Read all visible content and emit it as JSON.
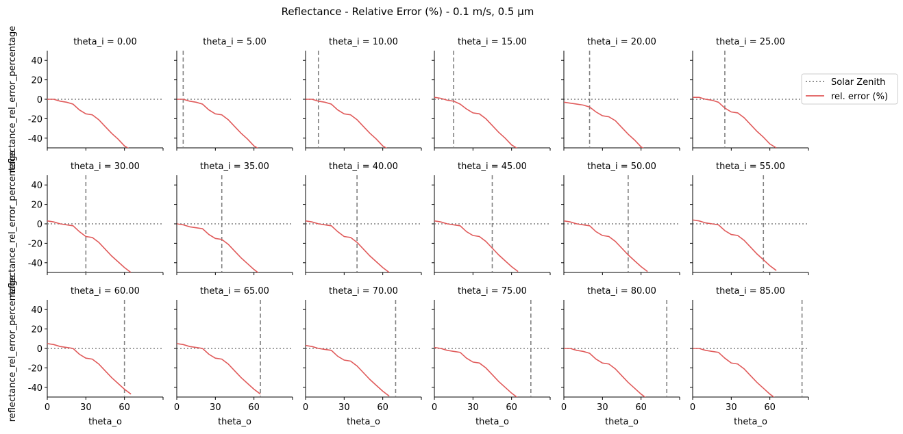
{
  "figure": {
    "title": "Reflectance - Relative Error (%) - 0.1 m/s, 0.5 µm"
  },
  "legend": {
    "placement": "right",
    "entries": [
      {
        "label": "Solar Zenith",
        "style": "dotted",
        "color": "#808080"
      },
      {
        "label": "rel. error (%)",
        "style": "solid",
        "color": "#e05a5a"
      }
    ]
  },
  "colors": {
    "error_line": "#e05a5a",
    "reference": "#808080",
    "axis": "#000000"
  },
  "chart_data": {
    "type": "line",
    "layout": "facet-grid 3x6",
    "xlabel": "theta_o",
    "ylabel": "reflectance_rel_error_percentage",
    "xlim": [
      0,
      90
    ],
    "ylim": [
      -50,
      50
    ],
    "xticks": [
      0,
      30,
      60
    ],
    "yticks": [
      -40,
      -20,
      0,
      20,
      40
    ],
    "hline_y": 0,
    "x": [
      0,
      5,
      10,
      15,
      20,
      25,
      30,
      35,
      40,
      45,
      50,
      55,
      60,
      65
    ],
    "panels": [
      {
        "title": "theta_i = 0.00",
        "theta_i": 0,
        "values": [
          0,
          0,
          -2,
          -3,
          -5,
          -11,
          -15,
          -16,
          -21,
          -28,
          -35,
          -41,
          -48,
          -52
        ]
      },
      {
        "title": "theta_i = 5.00",
        "theta_i": 5,
        "values": [
          0,
          0,
          -2,
          -3,
          -5,
          -11,
          -15,
          -16,
          -21,
          -28,
          -35,
          -41,
          -48,
          -52
        ]
      },
      {
        "title": "theta_i = 10.00",
        "theta_i": 10,
        "values": [
          0,
          0,
          -2,
          -3,
          -5,
          -11,
          -15,
          -16,
          -21,
          -28,
          -35,
          -41,
          -48,
          -52
        ]
      },
      {
        "title": "theta_i = 15.00",
        "theta_i": 15,
        "values": [
          2,
          1,
          -1,
          -2,
          -5,
          -10,
          -14,
          -15,
          -20,
          -27,
          -34,
          -40,
          -47,
          -51
        ]
      },
      {
        "title": "theta_i = 20.00",
        "theta_i": 20,
        "values": [
          -3,
          -4,
          -5,
          -6,
          -8,
          -13,
          -17,
          -18,
          -22,
          -29,
          -36,
          -42,
          -49,
          -53
        ]
      },
      {
        "title": "theta_i = 25.00",
        "theta_i": 25,
        "values": [
          2,
          2,
          0,
          -1,
          -3,
          -9,
          -13,
          -14,
          -19,
          -26,
          -33,
          -39,
          -46,
          -50
        ]
      },
      {
        "title": "theta_i = 30.00",
        "theta_i": 30,
        "values": [
          3,
          2,
          0,
          -1,
          -2,
          -8,
          -13,
          -14,
          -19,
          -26,
          -33,
          -39,
          -45,
          -50
        ]
      },
      {
        "title": "theta_i = 35.00",
        "theta_i": 35,
        "values": [
          0,
          -1,
          -3,
          -4,
          -5,
          -11,
          -15,
          -16,
          -21,
          -28,
          -35,
          -41,
          -47,
          -52
        ]
      },
      {
        "title": "theta_i = 40.00",
        "theta_i": 40,
        "values": [
          3,
          2,
          0,
          -1,
          -2,
          -8,
          -13,
          -14,
          -19,
          -26,
          -33,
          -39,
          -45,
          -50
        ]
      },
      {
        "title": "theta_i = 45.00",
        "theta_i": 45,
        "values": [
          3,
          2,
          0,
          -1,
          -2,
          -8,
          -12,
          -13,
          -18,
          -25,
          -32,
          -38,
          -44,
          -49
        ]
      },
      {
        "title": "theta_i = 50.00",
        "theta_i": 50,
        "values": [
          3,
          2,
          0,
          -1,
          -2,
          -8,
          -12,
          -13,
          -18,
          -25,
          -32,
          -38,
          -44,
          -49
        ]
      },
      {
        "title": "theta_i = 55.00",
        "theta_i": 55,
        "values": [
          4,
          3,
          1,
          0,
          -1,
          -7,
          -11,
          -12,
          -17,
          -24,
          -31,
          -37,
          -43,
          -48
        ]
      },
      {
        "title": "theta_i = 60.00",
        "theta_i": 60,
        "values": [
          5,
          4,
          2,
          1,
          0,
          -6,
          -10,
          -11,
          -16,
          -23,
          -30,
          -36,
          -42,
          -47
        ]
      },
      {
        "title": "theta_i = 65.00",
        "theta_i": 65,
        "values": [
          5,
          4,
          2,
          1,
          0,
          -6,
          -10,
          -11,
          -16,
          -23,
          -30,
          -36,
          -42,
          -47
        ]
      },
      {
        "title": "theta_i = 70.00",
        "theta_i": 70,
        "values": [
          3,
          2,
          0,
          -1,
          -2,
          -8,
          -12,
          -13,
          -18,
          -25,
          -32,
          -38,
          -44,
          -49
        ]
      },
      {
        "title": "theta_i = 75.00",
        "theta_i": 75,
        "values": [
          1,
          0,
          -2,
          -3,
          -4,
          -10,
          -14,
          -15,
          -20,
          -27,
          -34,
          -40,
          -46,
          -51
        ]
      },
      {
        "title": "theta_i = 80.00",
        "theta_i": 80,
        "values": [
          0,
          0,
          -2,
          -3,
          -5,
          -11,
          -15,
          -16,
          -21,
          -28,
          -35,
          -41,
          -47,
          -52
        ]
      },
      {
        "title": "theta_i = 85.00",
        "theta_i": 85,
        "values": [
          0,
          0,
          -2,
          -3,
          -4,
          -10,
          -15,
          -16,
          -21,
          -28,
          -35,
          -41,
          -47,
          -52
        ]
      }
    ]
  }
}
